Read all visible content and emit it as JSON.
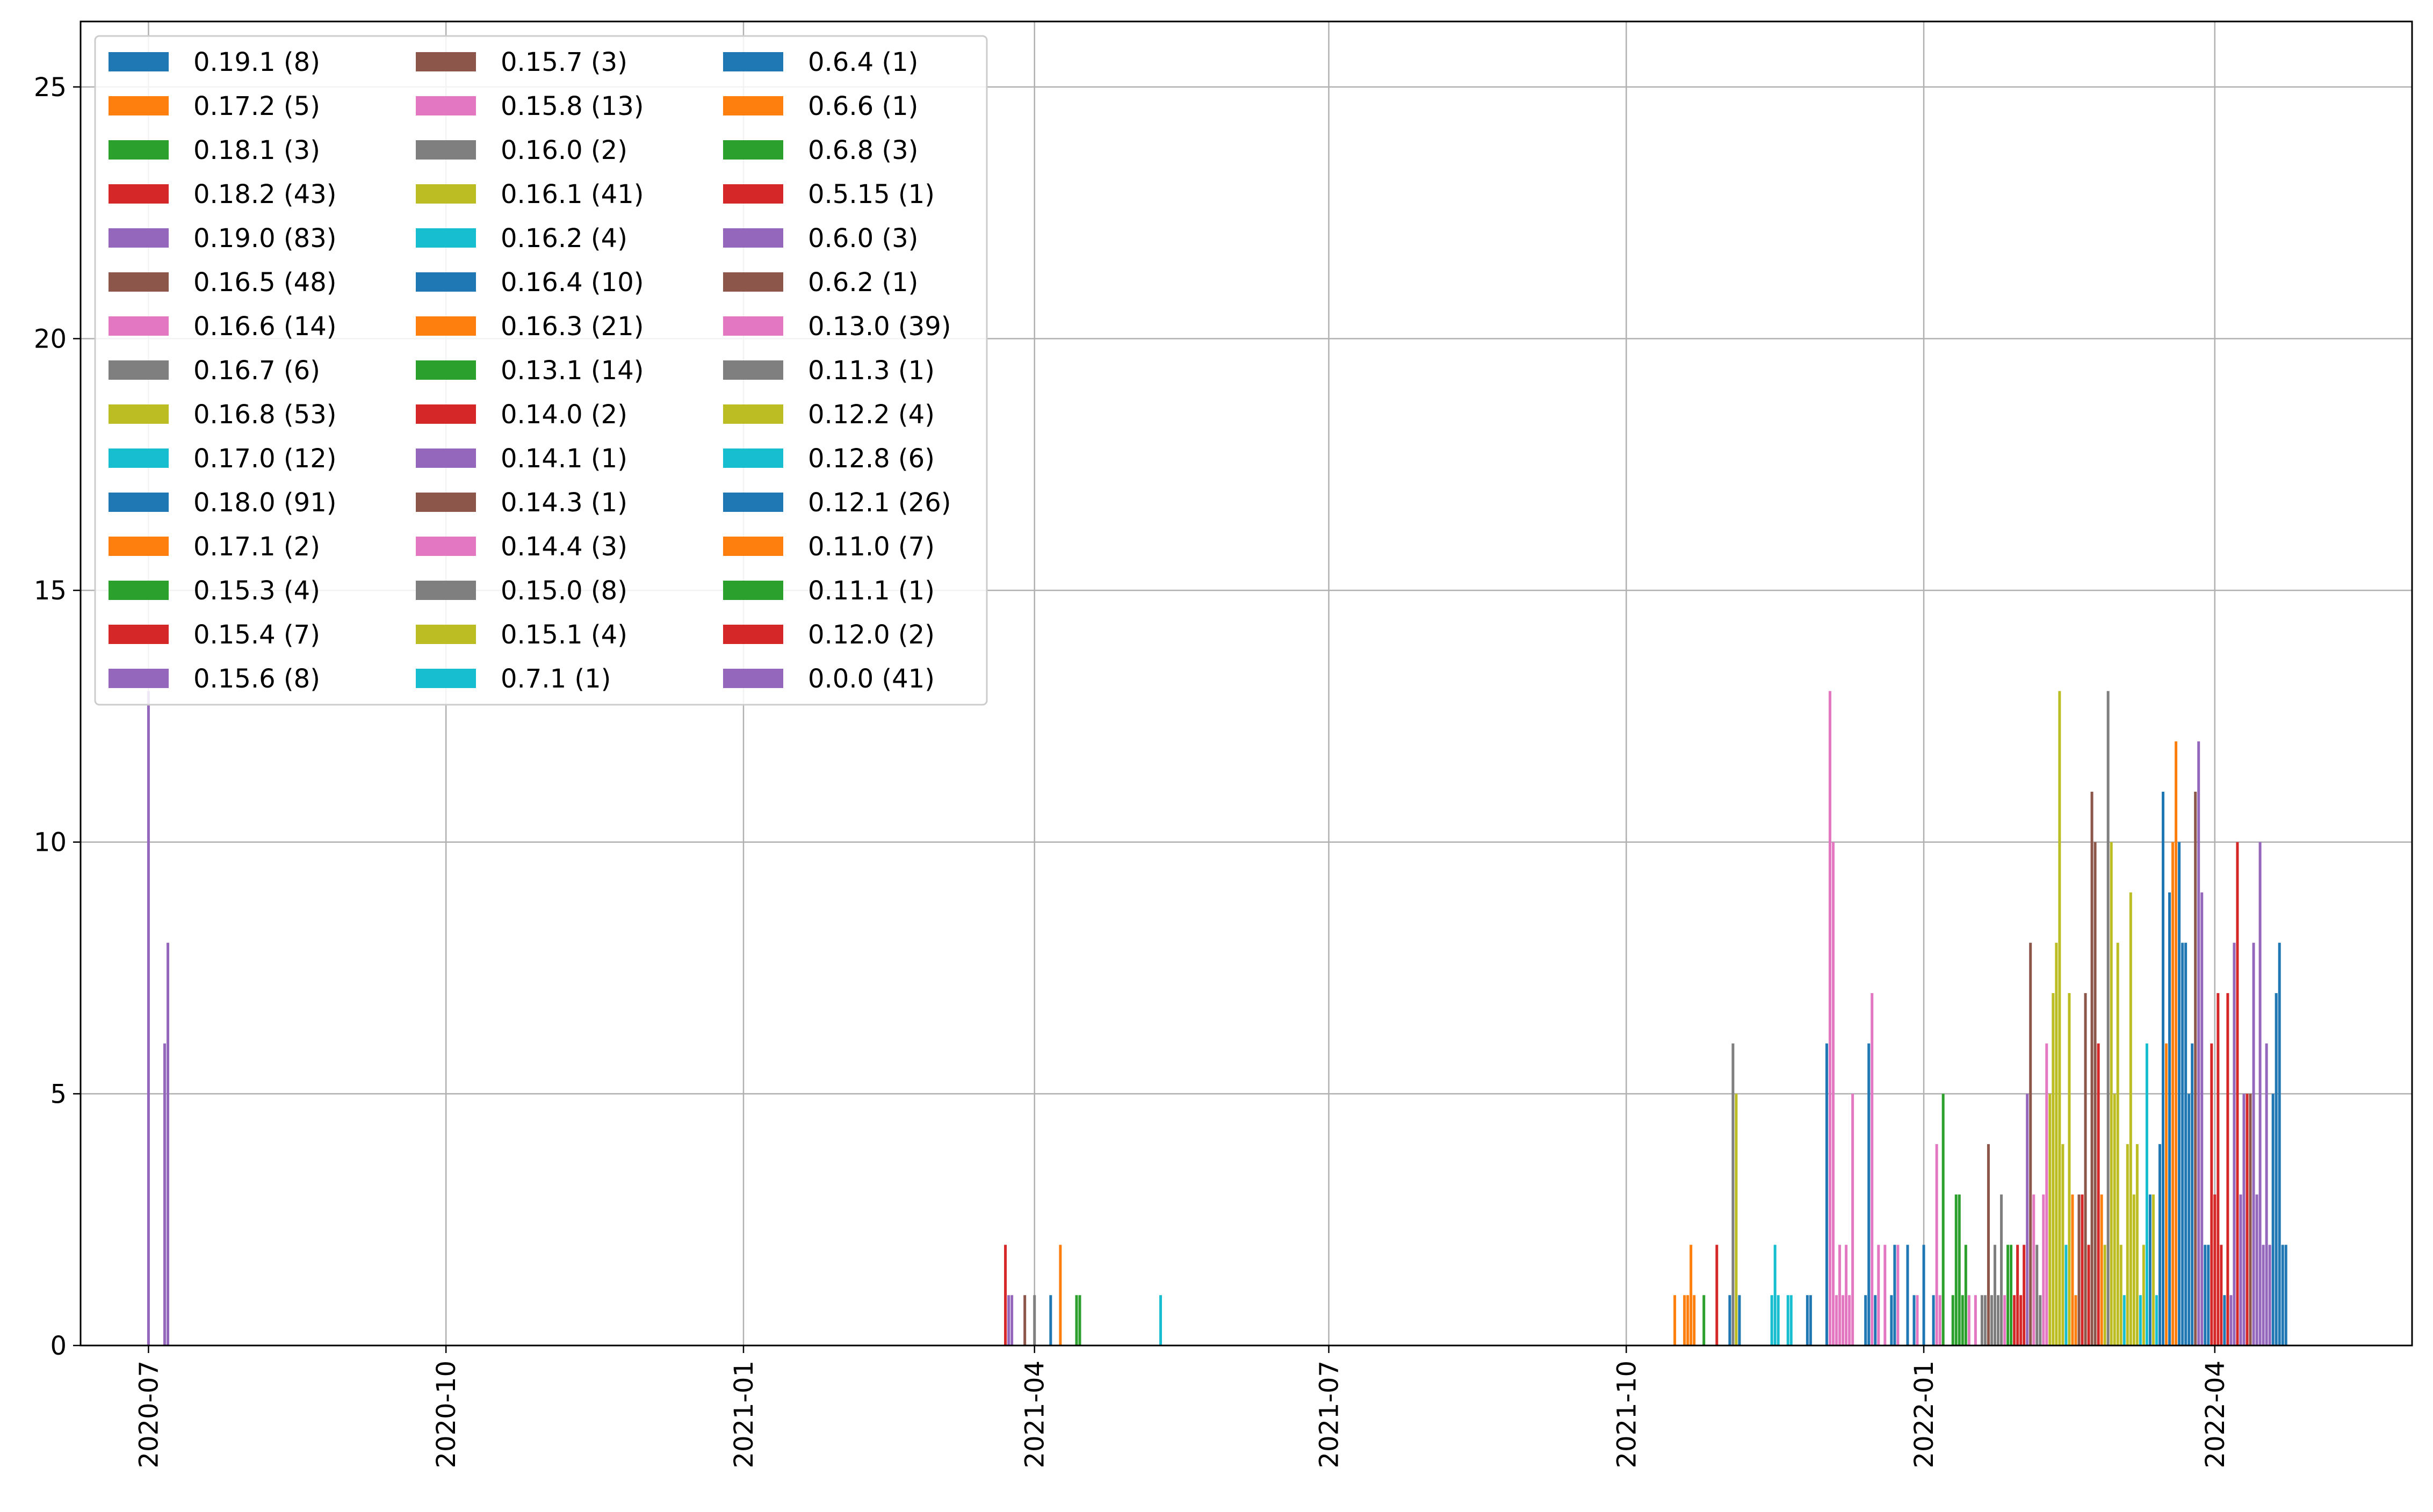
{
  "chart_data": {
    "type": "bar",
    "title": "",
    "xlabel": "",
    "ylabel": "",
    "x_axis": "date",
    "xlim": [
      "2020-06-10",
      "2022-06-01"
    ],
    "ylim": [
      0,
      26.3
    ],
    "grid": true,
    "legend_placement": "upper-left",
    "legend_columns": 3,
    "x_ticks": [
      "2020-07",
      "2020-10",
      "2021-01",
      "2021-04",
      "2021-07",
      "2021-10",
      "2022-01",
      "2022-04"
    ],
    "y_ticks": [
      "0",
      "5",
      "10",
      "15",
      "20",
      "25"
    ],
    "legend": [
      {
        "label": "0.19.1 (8)",
        "color": "#1f77b4"
      },
      {
        "label": "0.17.2 (5)",
        "color": "#ff7f0e"
      },
      {
        "label": "0.18.1 (3)",
        "color": "#2ca02c"
      },
      {
        "label": "0.18.2 (43)",
        "color": "#d62728"
      },
      {
        "label": "0.19.0 (83)",
        "color": "#9467bd"
      },
      {
        "label": "0.16.5 (48)",
        "color": "#8c564b"
      },
      {
        "label": "0.16.6 (14)",
        "color": "#e377c2"
      },
      {
        "label": "0.16.7 (6)",
        "color": "#7f7f7f"
      },
      {
        "label": "0.16.8 (53)",
        "color": "#bcbd22"
      },
      {
        "label": "0.17.0 (12)",
        "color": "#17becf"
      },
      {
        "label": "0.18.0 (91)",
        "color": "#1f77b4"
      },
      {
        "label": "0.17.1 (2)",
        "color": "#ff7f0e"
      },
      {
        "label": "0.15.3 (4)",
        "color": "#2ca02c"
      },
      {
        "label": "0.15.4 (7)",
        "color": "#d62728"
      },
      {
        "label": "0.15.6 (8)",
        "color": "#9467bd"
      },
      {
        "label": "0.15.7 (3)",
        "color": "#8c564b"
      },
      {
        "label": "0.15.8 (13)",
        "color": "#e377c2"
      },
      {
        "label": "0.16.0 (2)",
        "color": "#7f7f7f"
      },
      {
        "label": "0.16.1 (41)",
        "color": "#bcbd22"
      },
      {
        "label": "0.16.2 (4)",
        "color": "#17becf"
      },
      {
        "label": "0.16.4 (10)",
        "color": "#1f77b4"
      },
      {
        "label": "0.16.3 (21)",
        "color": "#ff7f0e"
      },
      {
        "label": "0.13.1 (14)",
        "color": "#2ca02c"
      },
      {
        "label": "0.14.0 (2)",
        "color": "#d62728"
      },
      {
        "label": "0.14.1 (1)",
        "color": "#9467bd"
      },
      {
        "label": "0.14.3 (1)",
        "color": "#8c564b"
      },
      {
        "label": "0.14.4 (3)",
        "color": "#e377c2"
      },
      {
        "label": "0.15.0 (8)",
        "color": "#7f7f7f"
      },
      {
        "label": "0.15.1 (4)",
        "color": "#bcbd22"
      },
      {
        "label": "0.7.1 (1)",
        "color": "#17becf"
      },
      {
        "label": "0.6.4 (1)",
        "color": "#1f77b4"
      },
      {
        "label": "0.6.6 (1)",
        "color": "#ff7f0e"
      },
      {
        "label": "0.6.8 (3)",
        "color": "#2ca02c"
      },
      {
        "label": "0.5.15 (1)",
        "color": "#d62728"
      },
      {
        "label": "0.6.0 (3)",
        "color": "#9467bd"
      },
      {
        "label": "0.6.2 (1)",
        "color": "#8c564b"
      },
      {
        "label": "0.13.0 (39)",
        "color": "#e377c2"
      },
      {
        "label": "0.11.3 (1)",
        "color": "#7f7f7f"
      },
      {
        "label": "0.12.2 (4)",
        "color": "#bcbd22"
      },
      {
        "label": "0.12.8 (6)",
        "color": "#17becf"
      },
      {
        "label": "0.12.1 (26)",
        "color": "#1f77b4"
      },
      {
        "label": "0.11.0 (7)",
        "color": "#ff7f0e"
      },
      {
        "label": "0.11.1 (1)",
        "color": "#2ca02c"
      },
      {
        "label": "0.12.0 (2)",
        "color": "#d62728"
      },
      {
        "label": "0.0.0 (41)",
        "color": "#9467bd"
      }
    ],
    "bars": [
      {
        "x": "2020-07-01",
        "y": 13,
        "color": "#9467bd"
      },
      {
        "x": "2020-07-06",
        "y": 6,
        "color": "#9467bd"
      },
      {
        "x": "2020-07-07",
        "y": 8,
        "color": "#9467bd"
      },
      {
        "x": "2021-03-23",
        "y": 2,
        "color": "#d62728"
      },
      {
        "x": "2021-03-24",
        "y": 1,
        "color": "#9467bd"
      },
      {
        "x": "2021-03-25",
        "y": 1,
        "color": "#9467bd"
      },
      {
        "x": "2021-03-29",
        "y": 1,
        "color": "#8c564b"
      },
      {
        "x": "2021-04-01",
        "y": 1,
        "color": "#7f7f7f"
      },
      {
        "x": "2021-04-06",
        "y": 1,
        "color": "#1f77b4"
      },
      {
        "x": "2021-04-09",
        "y": 2,
        "color": "#ff7f0e"
      },
      {
        "x": "2021-04-14",
        "y": 1,
        "color": "#2ca02c"
      },
      {
        "x": "2021-04-15",
        "y": 1,
        "color": "#2ca02c"
      },
      {
        "x": "2021-05-10",
        "y": 1,
        "color": "#17becf"
      },
      {
        "x": "2021-10-16",
        "y": 1,
        "color": "#ff7f0e"
      },
      {
        "x": "2021-10-19",
        "y": 1,
        "color": "#ff7f0e"
      },
      {
        "x": "2021-10-20",
        "y": 1,
        "color": "#ff7f0e"
      },
      {
        "x": "2021-10-21",
        "y": 2,
        "color": "#ff7f0e"
      },
      {
        "x": "2021-10-22",
        "y": 1,
        "color": "#ff7f0e"
      },
      {
        "x": "2021-10-25",
        "y": 1,
        "color": "#2ca02c"
      },
      {
        "x": "2021-10-29",
        "y": 2,
        "color": "#d62728"
      },
      {
        "x": "2021-11-02",
        "y": 1,
        "color": "#1f77b4"
      },
      {
        "x": "2021-11-03",
        "y": 6,
        "color": "#7f7f7f"
      },
      {
        "x": "2021-11-04",
        "y": 5,
        "color": "#bcbd22"
      },
      {
        "x": "2021-11-05",
        "y": 1,
        "color": "#1f77b4"
      },
      {
        "x": "2021-11-15",
        "y": 1,
        "color": "#17becf"
      },
      {
        "x": "2021-11-16",
        "y": 2,
        "color": "#17becf"
      },
      {
        "x": "2021-11-17",
        "y": 1,
        "color": "#17becf"
      },
      {
        "x": "2021-11-20",
        "y": 1,
        "color": "#17becf"
      },
      {
        "x": "2021-11-21",
        "y": 1,
        "color": "#17becf"
      },
      {
        "x": "2021-11-26",
        "y": 1,
        "color": "#1f77b4"
      },
      {
        "x": "2021-11-27",
        "y": 1,
        "color": "#1f77b4"
      },
      {
        "x": "2021-12-02",
        "y": 6,
        "color": "#1f77b4"
      },
      {
        "x": "2021-12-03",
        "y": 13,
        "color": "#e377c2"
      },
      {
        "x": "2021-12-04",
        "y": 10,
        "color": "#e377c2"
      },
      {
        "x": "2021-12-05",
        "y": 1,
        "color": "#e377c2"
      },
      {
        "x": "2021-12-06",
        "y": 2,
        "color": "#e377c2"
      },
      {
        "x": "2021-12-07",
        "y": 1,
        "color": "#e377c2"
      },
      {
        "x": "2021-12-08",
        "y": 2,
        "color": "#e377c2"
      },
      {
        "x": "2021-12-09",
        "y": 1,
        "color": "#e377c2"
      },
      {
        "x": "2021-12-10",
        "y": 5,
        "color": "#e377c2"
      },
      {
        "x": "2021-12-14",
        "y": 1,
        "color": "#1f77b4"
      },
      {
        "x": "2021-12-15",
        "y": 6,
        "color": "#1f77b4"
      },
      {
        "x": "2021-12-16",
        "y": 7,
        "color": "#e377c2"
      },
      {
        "x": "2021-12-17",
        "y": 1,
        "color": "#1f77b4"
      },
      {
        "x": "2021-12-18",
        "y": 2,
        "color": "#e377c2"
      },
      {
        "x": "2021-12-20",
        "y": 2,
        "color": "#e377c2"
      },
      {
        "x": "2021-12-22",
        "y": 1,
        "color": "#1f77b4"
      },
      {
        "x": "2021-12-23",
        "y": 2,
        "color": "#1f77b4"
      },
      {
        "x": "2021-12-24",
        "y": 2,
        "color": "#e377c2"
      },
      {
        "x": "2021-12-27",
        "y": 2,
        "color": "#1f77b4"
      },
      {
        "x": "2021-12-29",
        "y": 1,
        "color": "#1f77b4"
      },
      {
        "x": "2021-12-30",
        "y": 1,
        "color": "#e377c2"
      },
      {
        "x": "2022-01-01",
        "y": 2,
        "color": "#1f77b4"
      },
      {
        "x": "2022-01-04",
        "y": 1,
        "color": "#1f77b4"
      },
      {
        "x": "2022-01-05",
        "y": 4,
        "color": "#e377c2"
      },
      {
        "x": "2022-01-06",
        "y": 1,
        "color": "#e377c2"
      },
      {
        "x": "2022-01-07",
        "y": 5,
        "color": "#2ca02c"
      },
      {
        "x": "2022-01-10",
        "y": 1,
        "color": "#2ca02c"
      },
      {
        "x": "2022-01-11",
        "y": 3,
        "color": "#2ca02c"
      },
      {
        "x": "2022-01-12",
        "y": 3,
        "color": "#2ca02c"
      },
      {
        "x": "2022-01-13",
        "y": 1,
        "color": "#2ca02c"
      },
      {
        "x": "2022-01-14",
        "y": 2,
        "color": "#2ca02c"
      },
      {
        "x": "2022-01-15",
        "y": 1,
        "color": "#e377c2"
      },
      {
        "x": "2022-01-17",
        "y": 1,
        "color": "#e377c2"
      },
      {
        "x": "2022-01-19",
        "y": 1,
        "color": "#7f7f7f"
      },
      {
        "x": "2022-01-20",
        "y": 1,
        "color": "#7f7f7f"
      },
      {
        "x": "2022-01-21",
        "y": 4,
        "color": "#8c564b"
      },
      {
        "x": "2022-01-22",
        "y": 1,
        "color": "#7f7f7f"
      },
      {
        "x": "2022-01-23",
        "y": 2,
        "color": "#7f7f7f"
      },
      {
        "x": "2022-01-24",
        "y": 1,
        "color": "#7f7f7f"
      },
      {
        "x": "2022-01-25",
        "y": 3,
        "color": "#7f7f7f"
      },
      {
        "x": "2022-01-26",
        "y": 1,
        "color": "#e377c2"
      },
      {
        "x": "2022-01-27",
        "y": 2,
        "color": "#2ca02c"
      },
      {
        "x": "2022-01-28",
        "y": 2,
        "color": "#2ca02c"
      },
      {
        "x": "2022-01-29",
        "y": 1,
        "color": "#d62728"
      },
      {
        "x": "2022-01-30",
        "y": 2,
        "color": "#d62728"
      },
      {
        "x": "2022-01-31",
        "y": 1,
        "color": "#d62728"
      },
      {
        "x": "2022-02-01",
        "y": 2,
        "color": "#d62728"
      },
      {
        "x": "2022-02-02",
        "y": 5,
        "color": "#9467bd"
      },
      {
        "x": "2022-02-03",
        "y": 8,
        "color": "#8c564b"
      },
      {
        "x": "2022-02-04",
        "y": 3,
        "color": "#e377c2"
      },
      {
        "x": "2022-02-05",
        "y": 2,
        "color": "#7f7f7f"
      },
      {
        "x": "2022-02-06",
        "y": 1,
        "color": "#7f7f7f"
      },
      {
        "x": "2022-02-07",
        "y": 3,
        "color": "#e377c2"
      },
      {
        "x": "2022-02-08",
        "y": 6,
        "color": "#e377c2"
      },
      {
        "x": "2022-02-09",
        "y": 5,
        "color": "#bcbd22"
      },
      {
        "x": "2022-02-10",
        "y": 7,
        "color": "#bcbd22"
      },
      {
        "x": "2022-02-11",
        "y": 8,
        "color": "#bcbd22"
      },
      {
        "x": "2022-02-12",
        "y": 13,
        "color": "#bcbd22"
      },
      {
        "x": "2022-02-13",
        "y": 4,
        "color": "#bcbd22"
      },
      {
        "x": "2022-02-14",
        "y": 2,
        "color": "#17becf"
      },
      {
        "x": "2022-02-15",
        "y": 7,
        "color": "#bcbd22"
      },
      {
        "x": "2022-02-16",
        "y": 3,
        "color": "#ff7f0e"
      },
      {
        "x": "2022-02-17",
        "y": 1,
        "color": "#ff7f0e"
      },
      {
        "x": "2022-02-18",
        "y": 3,
        "color": "#8c564b"
      },
      {
        "x": "2022-02-19",
        "y": 3,
        "color": "#d62728"
      },
      {
        "x": "2022-02-20",
        "y": 7,
        "color": "#8c564b"
      },
      {
        "x": "2022-02-21",
        "y": 2,
        "color": "#d62728"
      },
      {
        "x": "2022-02-22",
        "y": 11,
        "color": "#8c564b"
      },
      {
        "x": "2022-02-23",
        "y": 10,
        "color": "#8c564b"
      },
      {
        "x": "2022-02-24",
        "y": 6,
        "color": "#d62728"
      },
      {
        "x": "2022-02-25",
        "y": 3,
        "color": "#ff7f0e"
      },
      {
        "x": "2022-02-26",
        "y": 2,
        "color": "#bcbd22"
      },
      {
        "x": "2022-02-27",
        "y": 13,
        "color": "#7f7f7f"
      },
      {
        "x": "2022-02-28",
        "y": 10,
        "color": "#bcbd22"
      },
      {
        "x": "2022-03-01",
        "y": 5,
        "color": "#bcbd22"
      },
      {
        "x": "2022-03-02",
        "y": 8,
        "color": "#bcbd22"
      },
      {
        "x": "2022-03-03",
        "y": 2,
        "color": "#bcbd22"
      },
      {
        "x": "2022-03-04",
        "y": 1,
        "color": "#17becf"
      },
      {
        "x": "2022-03-05",
        "y": 4,
        "color": "#bcbd22"
      },
      {
        "x": "2022-03-06",
        "y": 9,
        "color": "#bcbd22"
      },
      {
        "x": "2022-03-07",
        "y": 3,
        "color": "#bcbd22"
      },
      {
        "x": "2022-03-08",
        "y": 4,
        "color": "#bcbd22"
      },
      {
        "x": "2022-03-09",
        "y": 1,
        "color": "#17becf"
      },
      {
        "x": "2022-03-10",
        "y": 2,
        "color": "#bcbd22"
      },
      {
        "x": "2022-03-11",
        "y": 6,
        "color": "#17becf"
      },
      {
        "x": "2022-03-12",
        "y": 3,
        "color": "#1f77b4"
      },
      {
        "x": "2022-03-13",
        "y": 3,
        "color": "#bcbd22"
      },
      {
        "x": "2022-03-14",
        "y": 1,
        "color": "#17becf"
      },
      {
        "x": "2022-03-15",
        "y": 4,
        "color": "#1f77b4"
      },
      {
        "x": "2022-03-16",
        "y": 11,
        "color": "#1f77b4"
      },
      {
        "x": "2022-03-17",
        "y": 6,
        "color": "#ff7f0e"
      },
      {
        "x": "2022-03-18",
        "y": 9,
        "color": "#1f77b4"
      },
      {
        "x": "2022-03-19",
        "y": 10,
        "color": "#ff7f0e"
      },
      {
        "x": "2022-03-20",
        "y": 12,
        "color": "#ff7f0e"
      },
      {
        "x": "2022-03-21",
        "y": 10,
        "color": "#1f77b4"
      },
      {
        "x": "2022-03-22",
        "y": 8,
        "color": "#1f77b4"
      },
      {
        "x": "2022-03-23",
        "y": 8,
        "color": "#1f77b4"
      },
      {
        "x": "2022-03-24",
        "y": 5,
        "color": "#1f77b4"
      },
      {
        "x": "2022-03-25",
        "y": 6,
        "color": "#1f77b4"
      },
      {
        "x": "2022-03-26",
        "y": 11,
        "color": "#8c564b"
      },
      {
        "x": "2022-03-27",
        "y": 12,
        "color": "#9467bd"
      },
      {
        "x": "2022-03-28",
        "y": 9,
        "color": "#9467bd"
      },
      {
        "x": "2022-03-29",
        "y": 2,
        "color": "#1f77b4"
      },
      {
        "x": "2022-03-30",
        "y": 2,
        "color": "#1f77b4"
      },
      {
        "x": "2022-03-31",
        "y": 6,
        "color": "#d62728"
      },
      {
        "x": "2022-04-01",
        "y": 3,
        "color": "#d62728"
      },
      {
        "x": "2022-04-02",
        "y": 7,
        "color": "#d62728"
      },
      {
        "x": "2022-04-03",
        "y": 2,
        "color": "#d62728"
      },
      {
        "x": "2022-04-04",
        "y": 1,
        "color": "#1f77b4"
      },
      {
        "x": "2022-04-05",
        "y": 7,
        "color": "#d62728"
      },
      {
        "x": "2022-04-06",
        "y": 1,
        "color": "#9467bd"
      },
      {
        "x": "2022-04-07",
        "y": 8,
        "color": "#9467bd"
      },
      {
        "x": "2022-04-08",
        "y": 10,
        "color": "#d62728"
      },
      {
        "x": "2022-04-09",
        "y": 3,
        "color": "#9467bd"
      },
      {
        "x": "2022-04-10",
        "y": 5,
        "color": "#9467bd"
      },
      {
        "x": "2022-04-11",
        "y": 5,
        "color": "#d62728"
      },
      {
        "x": "2022-04-12",
        "y": 5,
        "color": "#8c564b"
      },
      {
        "x": "2022-04-13",
        "y": 8,
        "color": "#9467bd"
      },
      {
        "x": "2022-04-14",
        "y": 3,
        "color": "#9467bd"
      },
      {
        "x": "2022-04-15",
        "y": 10,
        "color": "#9467bd"
      },
      {
        "x": "2022-04-16",
        "y": 2,
        "color": "#9467bd"
      },
      {
        "x": "2022-04-17",
        "y": 6,
        "color": "#9467bd"
      },
      {
        "x": "2022-04-18",
        "y": 2,
        "color": "#9467bd"
      },
      {
        "x": "2022-04-19",
        "y": 5,
        "color": "#1f77b4"
      },
      {
        "x": "2022-04-20",
        "y": 7,
        "color": "#1f77b4"
      },
      {
        "x": "2022-04-21",
        "y": 8,
        "color": "#1f77b4"
      },
      {
        "x": "2022-04-22",
        "y": 2,
        "color": "#1f77b4"
      },
      {
        "x": "2022-04-23",
        "y": 2,
        "color": "#1f77b4"
      }
    ]
  }
}
